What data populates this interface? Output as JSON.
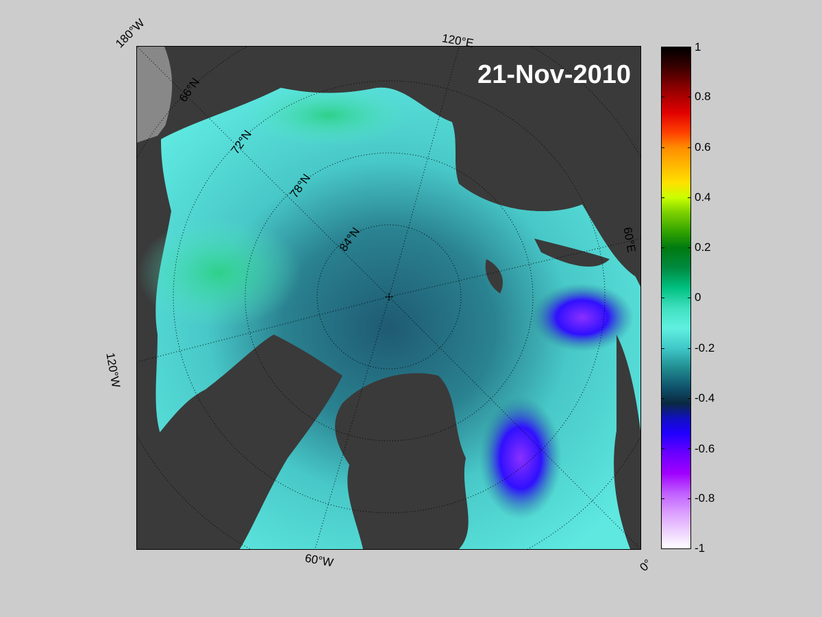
{
  "title": "21-Nov-2010",
  "longitude_labels": {
    "top_left": "180°W",
    "top_center": "120°E",
    "right": "60°E",
    "left": "120°W",
    "bottom_center": "60°W",
    "bottom_right": "0°"
  },
  "latitude_labels": [
    "66°N",
    "72°N",
    "78°N",
    "84°N"
  ],
  "colorbar": {
    "ticks": [
      "1",
      "0.8",
      "0.6",
      "0.4",
      "0.2",
      "0",
      "-0.2",
      "-0.4",
      "-0.6",
      "-0.8",
      "-1"
    ],
    "range": [
      -1,
      1
    ]
  },
  "colors": {
    "land": "#3a3a3a",
    "background": "#cccccc",
    "ice_low": "#1a10ff",
    "ice_mid": "#2a7f88",
    "ice_high": "#3fe0c0"
  }
}
